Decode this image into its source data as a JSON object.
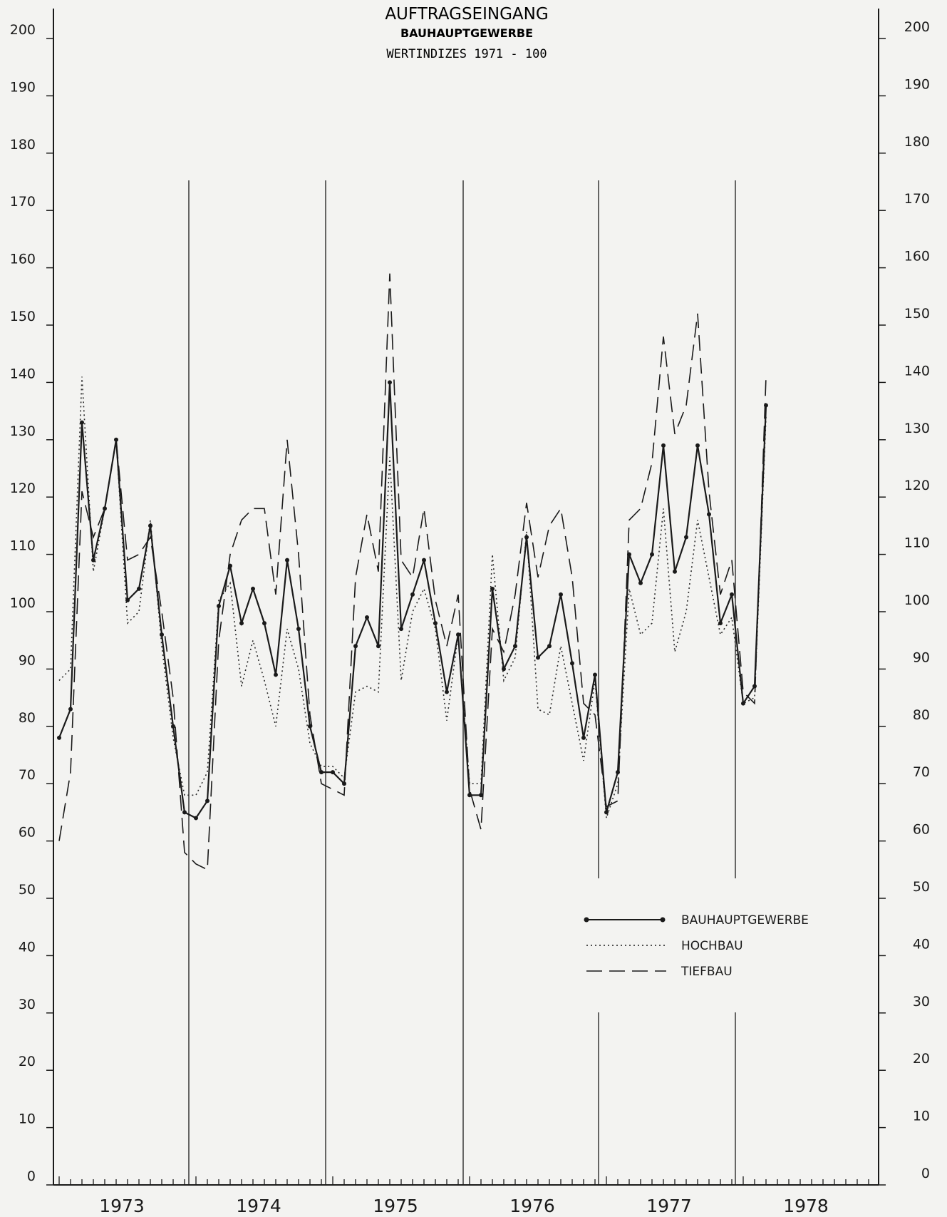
{
  "chart_data": {
    "type": "line",
    "title": "AUFTRAGSEINGANG",
    "subtitle": "BAUHAUPTGEWERBE",
    "subtitle2": "WERTINDIZES 1971 - 100",
    "ylim": [
      0,
      200
    ],
    "yticks": [
      0,
      10,
      20,
      30,
      40,
      50,
      60,
      70,
      80,
      90,
      100,
      110,
      120,
      130,
      140,
      150,
      160,
      170,
      180,
      190,
      200
    ],
    "x_years": [
      "1973",
      "1974",
      "1975",
      "1976",
      "1977",
      "1978"
    ],
    "x_unit": "month index from Jan 1973",
    "grid": false,
    "legend_position": "lower-right",
    "series": [
      {
        "name": "BAUHAUPTGEWERBE",
        "style": "solid-with-dots",
        "x": [
          0,
          1,
          2,
          3,
          4,
          5,
          6,
          7,
          8,
          9,
          10,
          11,
          12,
          13,
          14,
          15,
          16,
          17,
          18,
          19,
          20,
          21,
          22,
          23,
          24,
          25,
          26,
          27,
          28,
          29,
          30,
          31,
          32,
          33,
          34,
          35,
          36,
          37,
          38,
          39,
          40,
          41,
          42,
          43,
          44,
          45,
          46,
          47,
          48,
          49,
          50,
          51,
          52,
          53,
          54,
          55,
          56,
          57,
          58,
          59,
          60,
          61,
          62
        ],
        "values": [
          78,
          83,
          133,
          109,
          118,
          130,
          102,
          104,
          115,
          96,
          80,
          65,
          64,
          67,
          101,
          108,
          98,
          104,
          98,
          89,
          109,
          97,
          80,
          72,
          72,
          70,
          94,
          99,
          94,
          140,
          97,
          103,
          109,
          98,
          86,
          96,
          68,
          68,
          104,
          90,
          94,
          113,
          92,
          94,
          103,
          91,
          78,
          89,
          65,
          72,
          110,
          105,
          110,
          129,
          107,
          113,
          129,
          117,
          98,
          103,
          84,
          87,
          136
        ]
      },
      {
        "name": "HOCHBAU",
        "style": "dotted",
        "x": [
          0,
          1,
          2,
          3,
          4,
          5,
          6,
          7,
          8,
          9,
          10,
          11,
          12,
          13,
          14,
          15,
          16,
          17,
          18,
          19,
          20,
          21,
          22,
          23,
          24,
          25,
          26,
          27,
          28,
          29,
          30,
          31,
          32,
          33,
          34,
          35,
          36,
          37,
          38,
          39,
          40,
          41,
          42,
          43,
          44,
          45,
          46,
          47,
          48,
          49,
          50,
          51,
          52,
          53,
          54,
          55,
          56,
          57,
          58,
          59,
          60,
          61,
          62
        ],
        "values": [
          88,
          90,
          141,
          107,
          118,
          130,
          98,
          100,
          116,
          94,
          78,
          68,
          68,
          72,
          102,
          105,
          87,
          95,
          88,
          80,
          97,
          90,
          77,
          73,
          73,
          71,
          86,
          87,
          86,
          127,
          88,
          100,
          104,
          97,
          81,
          96,
          70,
          70,
          110,
          88,
          92,
          114,
          83,
          82,
          94,
          84,
          74,
          88,
          64,
          70,
          104,
          96,
          98,
          118,
          93,
          100,
          116,
          106,
          96,
          99,
          84,
          85,
          134
        ]
      },
      {
        "name": "TIEFBAU",
        "style": "dashed",
        "x": [
          0,
          1,
          2,
          3,
          4,
          5,
          6,
          7,
          8,
          9,
          10,
          11,
          12,
          13,
          14,
          15,
          16,
          17,
          18,
          19,
          20,
          21,
          22,
          23,
          24,
          25,
          26,
          27,
          28,
          29,
          30,
          31,
          32,
          33,
          34,
          35,
          36,
          37,
          38,
          39,
          40,
          41,
          42,
          43,
          44,
          45,
          46,
          47,
          48,
          49,
          50,
          51,
          52,
          53,
          54,
          55,
          56,
          57,
          58,
          59,
          60,
          61,
          62
        ],
        "values": [
          60,
          72,
          121,
          113,
          118,
          130,
          109,
          110,
          113,
          100,
          85,
          58,
          56,
          55,
          95,
          110,
          116,
          118,
          118,
          103,
          130,
          110,
          82,
          70,
          69,
          68,
          106,
          117,
          107,
          159,
          109,
          106,
          118,
          102,
          94,
          103,
          69,
          62,
          97,
          93,
          103,
          119,
          106,
          115,
          118,
          106,
          84,
          82,
          66,
          67,
          116,
          118,
          126,
          148,
          131,
          136,
          152,
          121,
          103,
          109,
          86,
          84,
          141
        ]
      }
    ]
  }
}
